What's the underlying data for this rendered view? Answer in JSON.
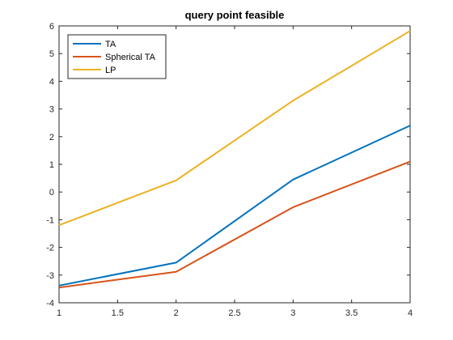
{
  "chart_data": {
    "type": "line",
    "title": "query point feasible",
    "xlabel": "",
    "ylabel": "",
    "x": [
      1,
      2,
      3,
      4
    ],
    "xlim": [
      1,
      4
    ],
    "ylim": [
      -4,
      6
    ],
    "xticks": [
      1,
      1.5,
      2,
      2.5,
      3,
      3.5,
      4
    ],
    "xtick_labels": [
      "1",
      "1.5",
      "2",
      "2.5",
      "3",
      "3.5",
      "4"
    ],
    "yticks": [
      -4,
      -3,
      -2,
      -1,
      0,
      1,
      2,
      3,
      4,
      5,
      6
    ],
    "ytick_labels": [
      "-4",
      "-3",
      "-2",
      "-1",
      "0",
      "1",
      "2",
      "3",
      "4",
      "5",
      "6"
    ],
    "grid": false,
    "legend_position": "top-left",
    "series": [
      {
        "name": "TA",
        "color": "#0072BD",
        "values": [
          -3.38,
          -2.55,
          0.45,
          2.4
        ]
      },
      {
        "name": "Spherical TA",
        "color": "#D95319",
        "values": [
          -3.45,
          -2.88,
          -0.55,
          1.1
        ]
      },
      {
        "name": "LP",
        "color": "#EDB120",
        "values": [
          -1.2,
          0.42,
          3.3,
          5.82
        ]
      }
    ]
  }
}
